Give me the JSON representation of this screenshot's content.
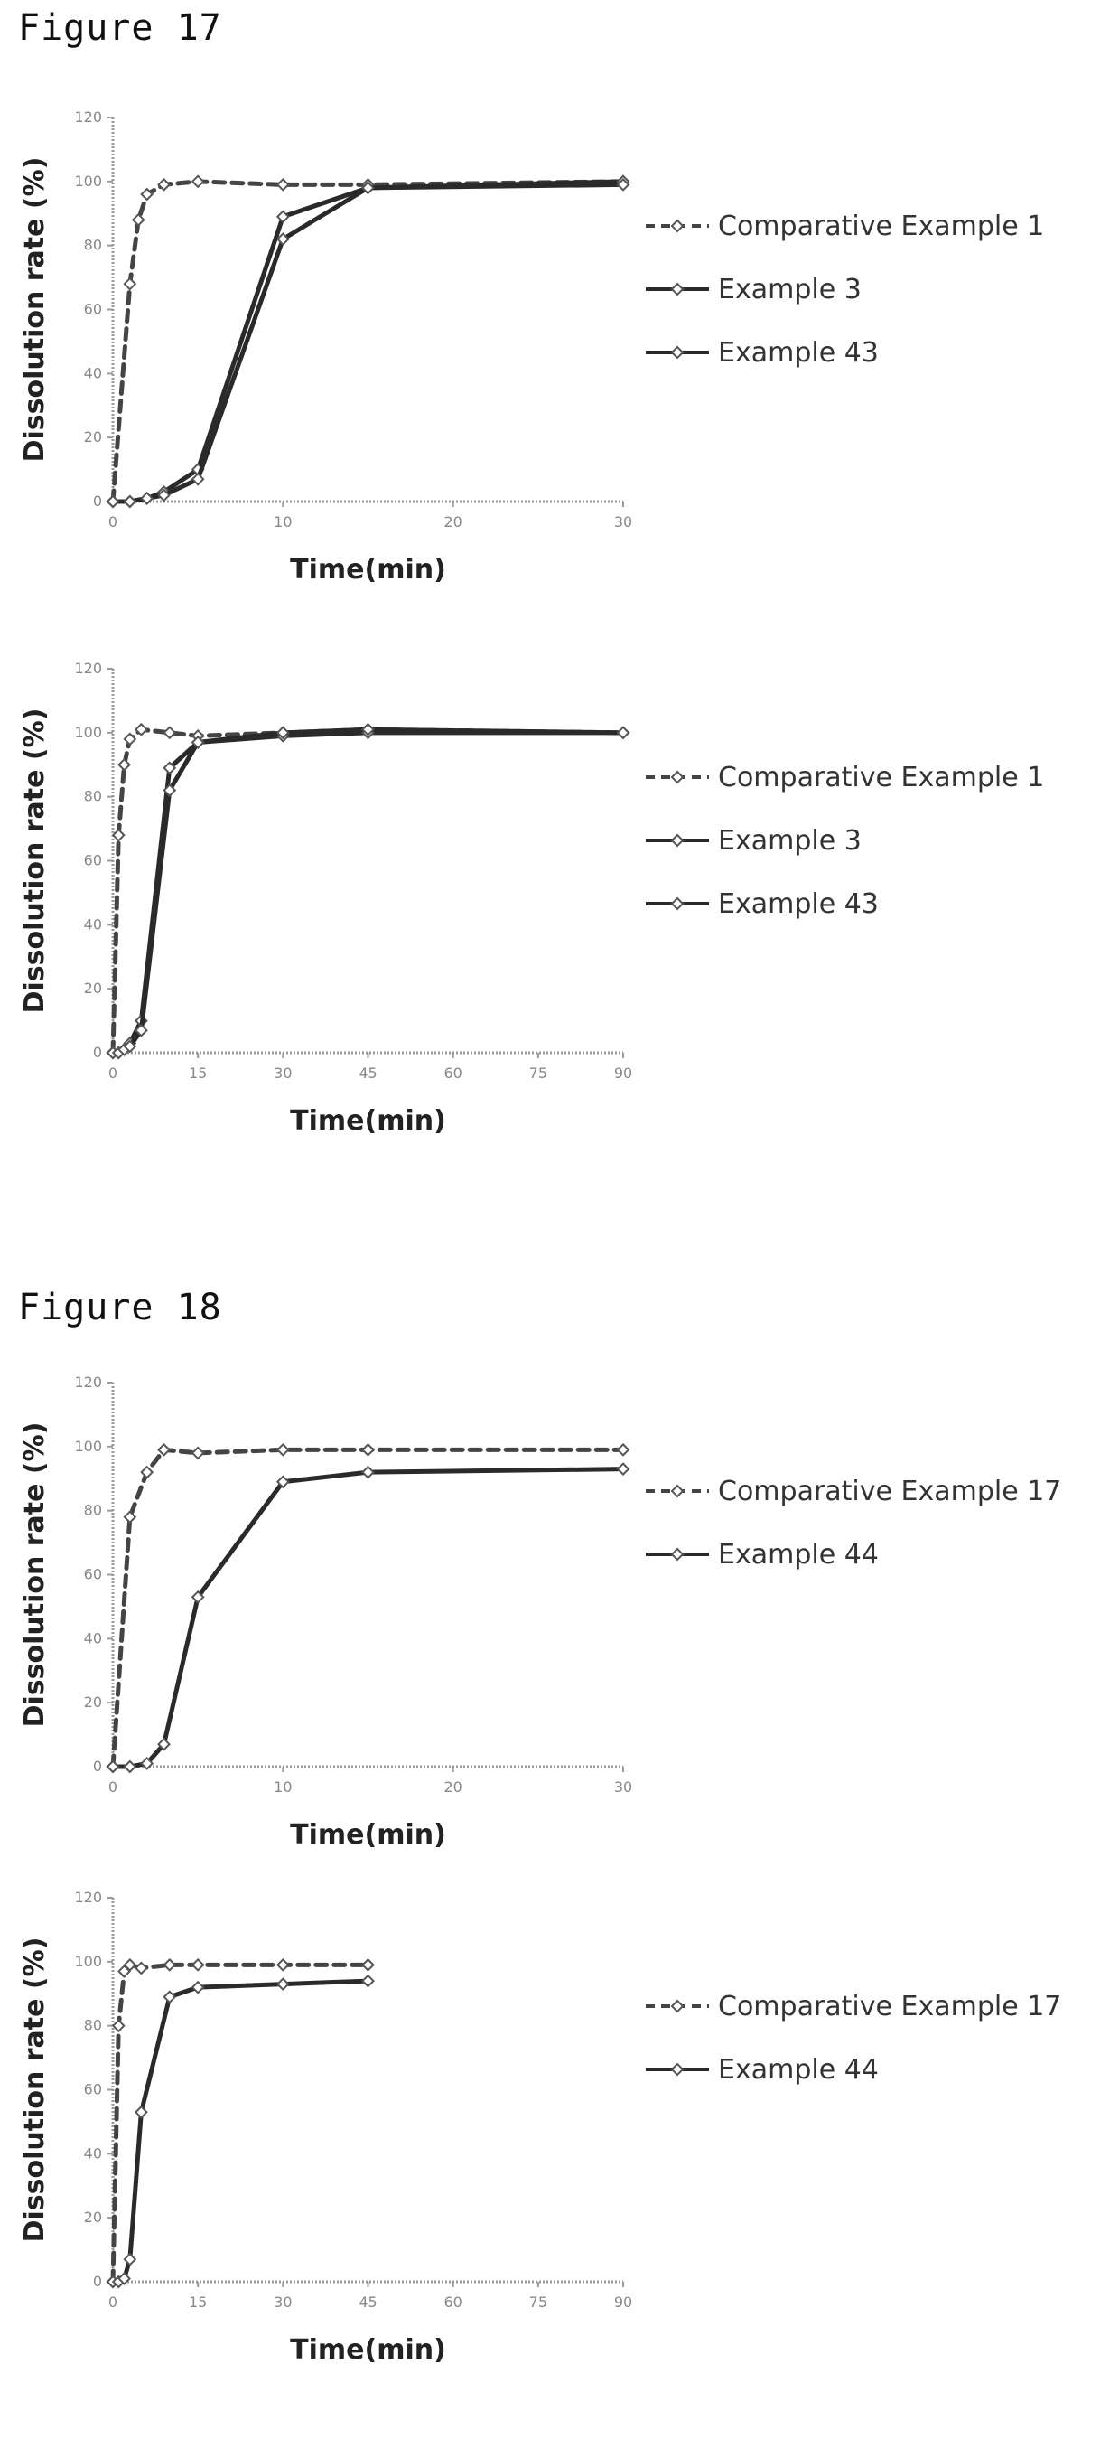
{
  "figures": [
    {
      "title": "Figure 17"
    },
    {
      "title": "Figure 18"
    }
  ],
  "chart_data": [
    {
      "type": "line",
      "figure": "Figure 17",
      "xlabel": "Time(min)",
      "ylabel": "Dissolution rate (%)",
      "xlim": [
        0,
        30
      ],
      "ylim": [
        0,
        120
      ],
      "xticks": [
        0,
        10,
        20,
        30
      ],
      "yticks": [
        0,
        20,
        40,
        60,
        80,
        100,
        120
      ],
      "legend_position": "right",
      "series": [
        {
          "name": "Comparative Example 1",
          "style": "dashed",
          "x": [
            0,
            1,
            1.5,
            2,
            3,
            5,
            10,
            15,
            30
          ],
          "y": [
            0,
            68,
            88,
            96,
            99,
            100,
            99,
            99,
            100
          ]
        },
        {
          "name": "Example 3",
          "style": "solid",
          "x": [
            0,
            1,
            2,
            3,
            5,
            10,
            15,
            30
          ],
          "y": [
            0,
            0,
            1,
            3,
            10,
            89,
            98,
            100
          ]
        },
        {
          "name": "Example 43",
          "style": "solid",
          "x": [
            0,
            1,
            2,
            3,
            5,
            10,
            15,
            30
          ],
          "y": [
            0,
            0,
            1,
            2,
            7,
            82,
            98,
            99
          ]
        }
      ]
    },
    {
      "type": "line",
      "figure": "Figure 17",
      "xlabel": "Time(min)",
      "ylabel": "Dissolution rate (%)",
      "xlim": [
        0,
        90
      ],
      "ylim": [
        0,
        120
      ],
      "xticks": [
        0,
        15,
        30,
        45,
        60,
        75,
        90
      ],
      "yticks": [
        0,
        20,
        40,
        60,
        80,
        100,
        120
      ],
      "legend_position": "right",
      "series": [
        {
          "name": "Comparative Example 1",
          "style": "dashed",
          "x": [
            0,
            1,
            2,
            3,
            5,
            10,
            15,
            30,
            45,
            90
          ],
          "y": [
            0,
            68,
            90,
            98,
            101,
            100,
            99,
            100,
            101,
            100
          ]
        },
        {
          "name": "Example 3",
          "style": "solid",
          "x": [
            0,
            1,
            2,
            3,
            5,
            10,
            15,
            30,
            45,
            90
          ],
          "y": [
            0,
            0,
            1,
            3,
            10,
            89,
            97,
            99,
            100,
            100
          ]
        },
        {
          "name": "Example 43",
          "style": "solid",
          "x": [
            0,
            1,
            2,
            3,
            5,
            10,
            15,
            30,
            45,
            90
          ],
          "y": [
            0,
            0,
            1,
            2,
            7,
            82,
            97,
            100,
            101,
            100
          ]
        }
      ]
    },
    {
      "type": "line",
      "figure": "Figure 18",
      "xlabel": "Time(min)",
      "ylabel": "Dissolution rate (%)",
      "xlim": [
        0,
        30
      ],
      "ylim": [
        0,
        120
      ],
      "xticks": [
        0,
        10,
        20,
        30
      ],
      "yticks": [
        0,
        20,
        40,
        60,
        80,
        100,
        120
      ],
      "legend_position": "right",
      "series": [
        {
          "name": "Comparative Example 17",
          "style": "dashed",
          "x": [
            0,
            1,
            2,
            3,
            5,
            10,
            15,
            30
          ],
          "y": [
            0,
            78,
            92,
            99,
            98,
            99,
            99,
            99
          ]
        },
        {
          "name": "Example 44",
          "style": "solid",
          "x": [
            0,
            1,
            2,
            3,
            5,
            10,
            15,
            30
          ],
          "y": [
            0,
            0,
            1,
            7,
            53,
            89,
            92,
            93
          ]
        }
      ]
    },
    {
      "type": "line",
      "figure": "Figure 18",
      "xlabel": "Time(min)",
      "ylabel": "Dissolution rate (%)",
      "xlim": [
        0,
        90
      ],
      "ylim": [
        0,
        120
      ],
      "xticks": [
        0,
        15,
        30,
        45,
        60,
        75,
        90
      ],
      "yticks": [
        0,
        20,
        40,
        60,
        80,
        100,
        120
      ],
      "legend_position": "right",
      "series": [
        {
          "name": "Comparative Example 17",
          "style": "dashed",
          "x": [
            0,
            1,
            2,
            3,
            5,
            10,
            15,
            30,
            45
          ],
          "y": [
            0,
            80,
            97,
            99,
            98,
            99,
            99,
            99,
            99
          ]
        },
        {
          "name": "Example 44",
          "style": "solid",
          "x": [
            0,
            1,
            2,
            3,
            5,
            10,
            15,
            30,
            45
          ],
          "y": [
            0,
            0,
            1,
            7,
            53,
            89,
            92,
            93,
            94
          ]
        }
      ]
    }
  ]
}
